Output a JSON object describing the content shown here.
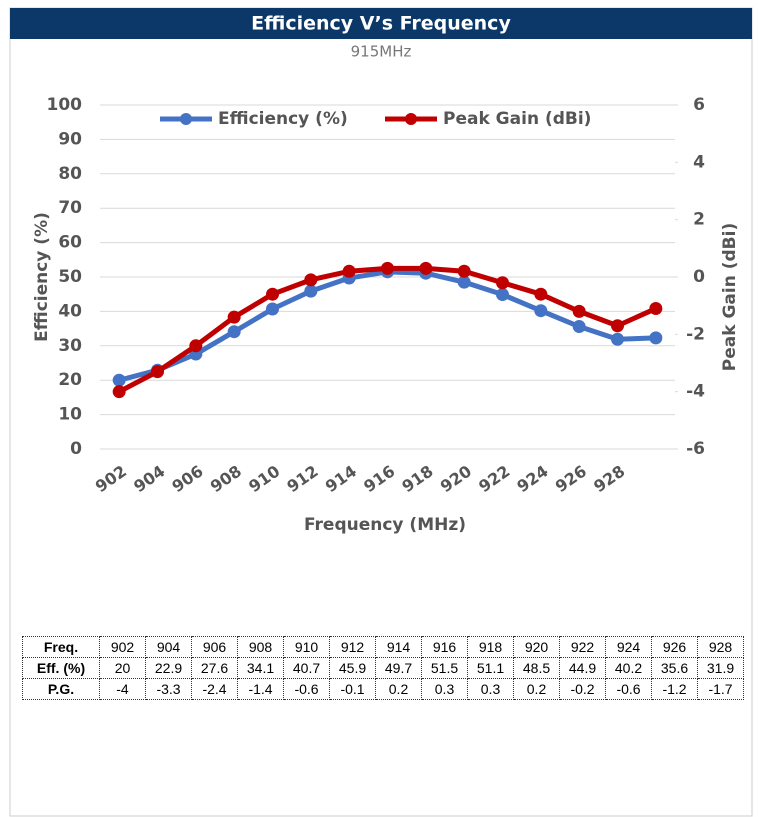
{
  "chart_data": {
    "type": "line",
    "title": "Efficiency V’s Frequency",
    "subtitle": "915MHz",
    "x_label": "Frequency (MHz)",
    "y_label": "Efficiency  (%)",
    "y2_label": "Peak Gain (dBi)",
    "categories": [
      "902",
      "904",
      "906",
      "908",
      "910",
      "912",
      "914",
      "916",
      "918",
      "920",
      "922",
      "924",
      "926",
      "928",
      null
    ],
    "series": [
      {
        "name": "Efficiency (%)",
        "color": "#4472c4",
        "values": [
          20,
          22.9,
          27.6,
          34.1,
          40.7,
          45.9,
          49.7,
          51.5,
          51.1,
          48.5,
          44.9,
          40.2,
          35.6,
          31.9,
          32.3
        ]
      },
      {
        "name": "Peak Gain (dBi)",
        "color": "#c00000",
        "axis": "y2",
        "values": [
          -4,
          -3.3,
          -2.4,
          -1.4,
          -0.6,
          -0.1,
          0.2,
          0.3,
          0.3,
          0.2,
          -0.2,
          -0.6,
          -1.2,
          -1.7,
          -1.1
        ]
      }
    ],
    "ylim": [
      0,
      100
    ],
    "yticks": [
      0,
      10,
      20,
      30,
      40,
      50,
      60,
      70,
      80,
      90,
      100
    ],
    "y2lim": [
      -6,
      6
    ],
    "y2ticks": [
      -6,
      -4,
      -2,
      0,
      2,
      4,
      6
    ],
    "grid": true,
    "legend": "top"
  },
  "table": {
    "rows": [
      [
        "Freq.",
        "902",
        "904",
        "906",
        "908",
        "910",
        "912",
        "914",
        "916",
        "918",
        "920",
        "922",
        "924",
        "926",
        "928"
      ],
      [
        "Eff. (%)",
        "20",
        "22.9",
        "27.6",
        "34.1",
        "40.7",
        "45.9",
        "49.7",
        "51.5",
        "51.1",
        "48.5",
        "44.9",
        "40.2",
        "35.6",
        "31.9"
      ],
      [
        "P.G.",
        "-4",
        "-3.3",
        "-2.4",
        "-1.4",
        "-0.6",
        "-0.1",
        "0.2",
        "0.3",
        "0.3",
        "0.2",
        "-0.2",
        "-0.6",
        "-1.2",
        "-1.7"
      ]
    ]
  }
}
